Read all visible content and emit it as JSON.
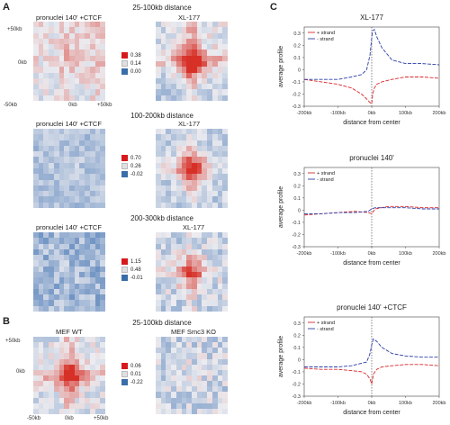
{
  "figure": {
    "panel_a": {
      "letter": "A",
      "sections": [
        {
          "header": "25-100kb distance",
          "left_title": "pronuclei 140' +CTCF",
          "right_title": "XL-177",
          "y_ticks": [
            "+50kb",
            "0kb",
            "-50kb"
          ],
          "x_ticks": [
            "-50kb",
            "0kb",
            "+50kb"
          ],
          "legend": [
            "0.38",
            "0.14",
            "0.00"
          ]
        },
        {
          "header": "100-200kb distance",
          "left_title": "pronuclei 140' +CTCF",
          "right_title": "XL-177",
          "legend": [
            "0.70",
            "0.26",
            "-0.02"
          ]
        },
        {
          "header": "200-300kb distance",
          "left_title": "pronuclei 140' +CTCF",
          "right_title": "XL-177",
          "legend": [
            "1.15",
            "0.48",
            "-0.01"
          ]
        }
      ]
    },
    "panel_b": {
      "letter": "B",
      "header": "25-100kb distance",
      "left_title": "MEF WT",
      "right_title": "MEF Smc3 KO",
      "y_ticks": [
        "+50kb",
        "0kb",
        "-50kb"
      ],
      "x_ticks": [
        "-50kb",
        "0kb",
        "+50kb"
      ],
      "legend": [
        "0.06",
        "0.01",
        "-0.22"
      ]
    },
    "panel_c": {
      "letter": "C"
    },
    "colors": {
      "red": "#d7191c",
      "light": "#e8e8ea",
      "blue": "#3a6ea8",
      "plus": "#d9262a",
      "minus": "#2b3ea8"
    }
  },
  "chart_data": [
    {
      "type": "line",
      "title": "XL-177",
      "xlabel": "distance from center",
      "ylabel": "average profile",
      "x_ticks": [
        "-200kb",
        "-100kb",
        "0kb",
        "100kb",
        "200kb"
      ],
      "y_ticks": [
        "0.3",
        "0.2",
        "0.1",
        "0",
        "-0.1",
        "-0.2",
        "-0.3"
      ],
      "xlim": [
        -200,
        200
      ],
      "ylim": [
        -0.3,
        0.35
      ],
      "legend": "top-left",
      "series": [
        {
          "name": "+ strand",
          "x": [
            -200,
            -150,
            -100,
            -60,
            -30,
            -15,
            -5,
            0,
            3,
            8,
            15,
            30,
            60,
            100,
            150,
            200
          ],
          "y": [
            -0.08,
            -0.1,
            -0.12,
            -0.15,
            -0.2,
            -0.24,
            -0.27,
            -0.28,
            -0.2,
            -0.15,
            -0.12,
            -0.1,
            -0.08,
            -0.06,
            -0.06,
            -0.07
          ]
        },
        {
          "name": "- strand",
          "x": [
            -200,
            -150,
            -100,
            -60,
            -30,
            -15,
            -5,
            0,
            3,
            8,
            15,
            30,
            60,
            100,
            150,
            200
          ],
          "y": [
            -0.08,
            -0.08,
            -0.08,
            -0.06,
            -0.04,
            0.0,
            0.12,
            0.26,
            0.32,
            0.33,
            0.27,
            0.18,
            0.08,
            0.05,
            0.05,
            0.04
          ]
        }
      ]
    },
    {
      "type": "line",
      "title": "pronuclei 140'",
      "xlabel": "distance from center",
      "ylabel": "average profile",
      "x_ticks": [
        "-200kb",
        "-100kb",
        "0kb",
        "100kb",
        "200kb"
      ],
      "y_ticks": [
        "0.3",
        "0.2",
        "0.1",
        "0",
        "-0.1",
        "-0.2",
        "-0.3"
      ],
      "xlim": [
        -200,
        200
      ],
      "ylim": [
        -0.3,
        0.35
      ],
      "legend": "top-left",
      "series": [
        {
          "name": "+ strand",
          "x": [
            -200,
            -150,
            -100,
            -50,
            -10,
            0,
            10,
            50,
            100,
            150,
            200
          ],
          "y": [
            -0.04,
            -0.03,
            -0.02,
            -0.01,
            -0.02,
            -0.03,
            0.01,
            0.03,
            0.03,
            0.02,
            0.02
          ]
        },
        {
          "name": "- strand",
          "x": [
            -200,
            -150,
            -100,
            -50,
            -10,
            0,
            10,
            50,
            100,
            150,
            200
          ],
          "y": [
            -0.03,
            -0.03,
            -0.02,
            -0.02,
            -0.01,
            0.01,
            0.02,
            0.02,
            0.02,
            0.01,
            0.01
          ]
        }
      ]
    },
    {
      "type": "line",
      "title": "pronuclei 140' +CTCF",
      "xlabel": "distance from center",
      "ylabel": "average profile",
      "x_ticks": [
        "-200kb",
        "-100kb",
        "0kb",
        "100kb",
        "200kb"
      ],
      "y_ticks": [
        "0.3",
        "0.2",
        "0.1",
        "0",
        "-0.1",
        "-0.2",
        "-0.3"
      ],
      "xlim": [
        -200,
        200
      ],
      "ylim": [
        -0.3,
        0.35
      ],
      "legend": "top-left",
      "series": [
        {
          "name": "+ strand",
          "x": [
            -200,
            -150,
            -100,
            -60,
            -30,
            -15,
            -5,
            0,
            5,
            15,
            30,
            60,
            100,
            150,
            200
          ],
          "y": [
            -0.07,
            -0.08,
            -0.08,
            -0.09,
            -0.1,
            -0.12,
            -0.16,
            -0.2,
            -0.12,
            -0.08,
            -0.06,
            -0.05,
            -0.04,
            -0.04,
            -0.05
          ]
        },
        {
          "name": "- strand",
          "x": [
            -200,
            -150,
            -100,
            -60,
            -30,
            -15,
            -5,
            0,
            5,
            15,
            30,
            60,
            100,
            150,
            200
          ],
          "y": [
            -0.06,
            -0.06,
            -0.06,
            -0.05,
            -0.03,
            -0.02,
            0.05,
            0.12,
            0.17,
            0.15,
            0.1,
            0.05,
            0.03,
            0.02,
            0.02
          ]
        }
      ]
    }
  ]
}
